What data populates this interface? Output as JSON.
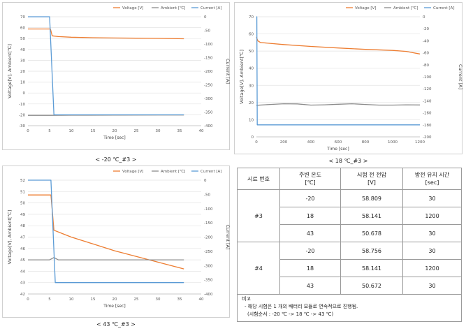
{
  "charts": [
    {
      "caption": "< -20 ℃_#3 >"
    },
    {
      "caption": "< 18 ℃_#3 >"
    },
    {
      "caption": "< 43 ℃_#3 >"
    }
  ],
  "chart_data": [
    {
      "type": "line",
      "legend": [
        "Voltage [V]",
        "Ambient [℃]",
        "Current [A]"
      ],
      "legend_position": "top-right",
      "grid": "horizontal",
      "xlabel": "Time [sec]",
      "ylabel_left": "Voltage[V], Ambient[℃]",
      "ylabel_right": "Current [A]",
      "xlim": [
        0,
        40
      ],
      "ylim_left": [
        -30,
        70
      ],
      "ylim_right": [
        -400,
        0
      ],
      "xticks": [
        0,
        5,
        10,
        15,
        20,
        25,
        30,
        35,
        40
      ],
      "yticks_left": [
        -30,
        -20,
        -10,
        0,
        10,
        20,
        30,
        40,
        50,
        60,
        70
      ],
      "yticks_right": [
        -400,
        -350,
        -300,
        -250,
        -200,
        -150,
        -100,
        -50,
        0
      ],
      "series": [
        {
          "name": "Voltage [V]",
          "color": "#ED7D31",
          "axis": "left",
          "x": [
            0,
            5.2,
            5.6,
            7,
            10,
            15,
            20,
            25,
            30,
            36
          ],
          "y": [
            58.8,
            58.8,
            52.5,
            51.8,
            51.2,
            50.8,
            50.5,
            50.3,
            50.1,
            49.8
          ]
        },
        {
          "name": "Ambient [℃]",
          "color": "#8C8C8C",
          "axis": "left",
          "x": [
            0,
            5,
            10,
            20,
            30,
            36
          ],
          "y": [
            -20.5,
            -20.5,
            -20.4,
            -20.3,
            -20.2,
            -20.2
          ]
        },
        {
          "name": "Current [A]",
          "color": "#5B9BD5",
          "axis": "right",
          "x": [
            0,
            5.0,
            6.0,
            10,
            20,
            30,
            36
          ],
          "y": [
            0,
            0,
            -360,
            -360,
            -360,
            -360,
            -360
          ]
        }
      ]
    },
    {
      "type": "line",
      "legend": [
        "Voltage [V]",
        "Ambient [℃]",
        "Current [A]"
      ],
      "legend_position": "top-right",
      "grid": "horizontal",
      "xlabel": "Time [sec]",
      "ylabel_left": "Voltage[V], Ambient[℃]",
      "ylabel_right": "Current [A]",
      "xlim": [
        0,
        1200
      ],
      "ylim_left": [
        0,
        70
      ],
      "ylim_right": [
        -200,
        0
      ],
      "xticks": [
        0,
        200,
        400,
        600,
        800,
        1000,
        1200
      ],
      "yticks_left": [
        0,
        10,
        20,
        30,
        40,
        50,
        60,
        70
      ],
      "yticks_right": [
        -200,
        -180,
        -160,
        -140,
        -120,
        -100,
        -80,
        -60,
        -40,
        -20,
        0
      ],
      "series": [
        {
          "name": "Voltage [V]",
          "color": "#ED7D31",
          "axis": "left",
          "x": [
            0,
            10,
            30,
            100,
            200,
            400,
            600,
            800,
            1000,
            1100,
            1200
          ],
          "y": [
            58.1,
            56,
            55,
            54.5,
            53.8,
            52.7,
            51.8,
            51,
            50.4,
            49.8,
            48.3
          ]
        },
        {
          "name": "Ambient [℃]",
          "color": "#8C8C8C",
          "axis": "left",
          "x": [
            0,
            100,
            200,
            300,
            400,
            500,
            600,
            700,
            800,
            900,
            1000,
            1100,
            1200
          ],
          "y": [
            18.4,
            18.9,
            19.3,
            19.2,
            18.5,
            18.7,
            19.0,
            19.3,
            18.9,
            18.5,
            18.5,
            18.7,
            18.6
          ]
        },
        {
          "name": "Current [A]",
          "color": "#5B9BD5",
          "axis": "right",
          "x": [
            0,
            3,
            6,
            100,
            400,
            800,
            1200
          ],
          "y": [
            0,
            0,
            -180,
            -180,
            -180,
            -180,
            -180
          ]
        }
      ]
    },
    {
      "type": "line",
      "legend": [
        "Voltage [V]",
        "Ambient [℃]",
        "Current [A]"
      ],
      "legend_position": "top-right",
      "grid": "horizontal",
      "xlabel": "Time [sec]",
      "ylabel_left": "Voltage[V], Ambient[℃]",
      "ylabel_right": "Current [A]",
      "xlim": [
        0,
        40
      ],
      "ylim_left": [
        42,
        52
      ],
      "ylim_right": [
        -400,
        0
      ],
      "xticks": [
        0,
        5,
        10,
        15,
        20,
        25,
        30,
        35,
        40
      ],
      "yticks_left": [
        42,
        43,
        44,
        45,
        46,
        47,
        48,
        49,
        50,
        51,
        52
      ],
      "yticks_right": [
        -400,
        -350,
        -300,
        -250,
        -200,
        -150,
        -100,
        -50,
        0
      ],
      "series": [
        {
          "name": "Voltage [V]",
          "color": "#ED7D31",
          "axis": "left",
          "x": [
            0,
            5.3,
            6.0,
            8,
            10,
            15,
            20,
            25,
            30,
            36
          ],
          "y": [
            50.7,
            50.7,
            47.6,
            47.3,
            47.0,
            46.4,
            45.8,
            45.3,
            44.8,
            44.2
          ]
        },
        {
          "name": "Ambient [℃]",
          "color": "#8C8C8C",
          "axis": "left",
          "x": [
            0,
            5,
            6,
            7,
            8,
            10,
            20,
            30,
            36
          ],
          "y": [
            45.0,
            45.0,
            45.2,
            45.0,
            45.0,
            45.0,
            45.0,
            45.0,
            45.0
          ]
        },
        {
          "name": "Current [A]",
          "color": "#5B9BD5",
          "axis": "right",
          "x": [
            0,
            5.3,
            6.3,
            10,
            20,
            30,
            36
          ],
          "y": [
            0,
            0,
            -360,
            -360,
            -360,
            -360,
            -360
          ]
        }
      ]
    }
  ],
  "table": {
    "header": [
      [
        "시료 번호"
      ],
      [
        "주변 온도",
        "[℃]"
      ],
      [
        "시험 전 전압",
        "[V]"
      ],
      [
        "방전 유지 시간",
        "[sec]"
      ]
    ],
    "groups": [
      {
        "sample": "#3",
        "rows": [
          [
            "-20",
            "58.809",
            "30"
          ],
          [
            "18",
            "58.141",
            "1200"
          ],
          [
            "43",
            "50.678",
            "30"
          ]
        ]
      },
      {
        "sample": "#4",
        "rows": [
          [
            "-20",
            "58.756",
            "30"
          ],
          [
            "18",
            "58.141",
            "1200"
          ],
          [
            "43",
            "50.672",
            "30"
          ]
        ]
      }
    ]
  },
  "note": {
    "title": "비고",
    "lines": [
      "- 해당 시험은 1 개의 배터리 모듈로 연속적으로 진행됨.",
      "(시험순서 : -20 ℃ -> 18 ℃ -> 43 ℃)"
    ]
  }
}
